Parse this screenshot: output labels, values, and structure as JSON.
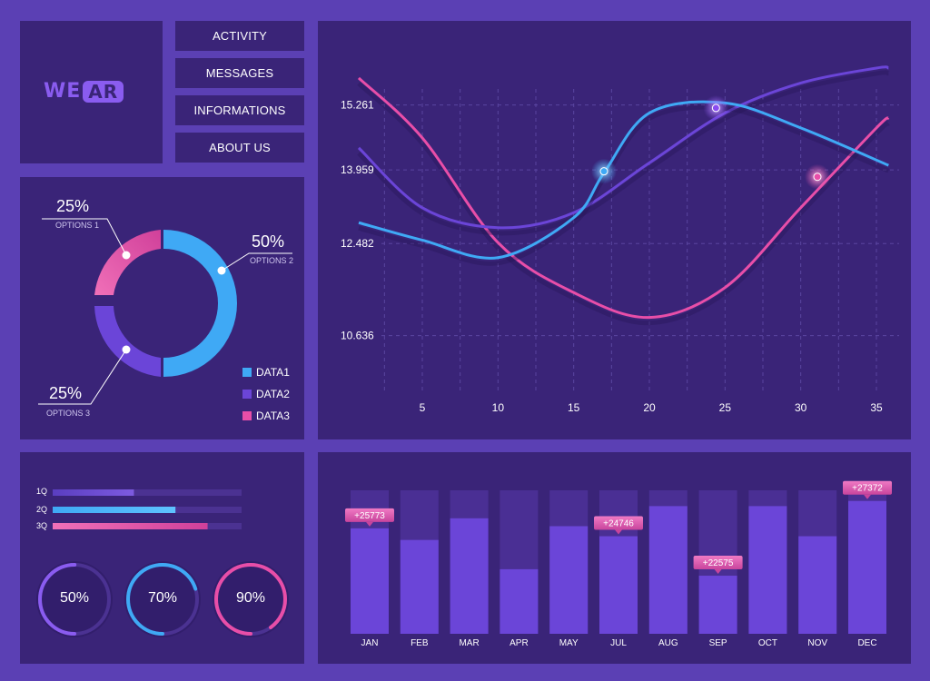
{
  "logo": {
    "prefix": "WE",
    "suffix": "AR"
  },
  "nav": {
    "items": [
      {
        "label": "ACTIVITY"
      },
      {
        "label": "MESSAGES"
      },
      {
        "label": "INFORMATIONS"
      },
      {
        "label": "ABOUT US"
      }
    ]
  },
  "colors": {
    "data1": "#3fa9f5",
    "data2": "#6b45d8",
    "data3": "#e84ea8",
    "panel": "#3a2478",
    "frame": "#5b40b4"
  },
  "donut": {
    "slices": [
      {
        "percent": "50%",
        "option": "OPTIONS 2",
        "legend": "DATA1",
        "value": 50
      },
      {
        "percent": "25%",
        "option": "OPTIONS 3",
        "legend": "DATA2",
        "value": 25
      },
      {
        "percent": "25%",
        "option": "OPTIONS 1",
        "legend": "DATA3",
        "value": 25
      }
    ]
  },
  "progress": {
    "bars": [
      {
        "label": "1Q",
        "value": 0.43
      },
      {
        "label": "2Q",
        "value": 0.65
      },
      {
        "label": "3Q",
        "value": 0.82
      }
    ],
    "rings": [
      {
        "label": "50%",
        "value": 0.5
      },
      {
        "label": "70%",
        "value": 0.7
      },
      {
        "label": "90%",
        "value": 0.9
      }
    ]
  },
  "chart_data": [
    {
      "type": "line",
      "y_ticks": [
        "15.261",
        "13.959",
        "12.482",
        "10.636"
      ],
      "x_ticks": [
        "5",
        "10",
        "15",
        "20",
        "25",
        "30",
        "35"
      ],
      "xlim": [
        0.5,
        36.5
      ],
      "ylim": [
        9.3,
        16.4
      ],
      "y_tick_values": [
        15.261,
        13.959,
        12.482,
        10.636
      ],
      "grid": true,
      "series": [
        {
          "color": "#e84ea8",
          "points": [
            [
              0.8,
              15.8
            ],
            [
              5,
              14.6
            ],
            [
              10,
              12.5
            ],
            [
              15,
              11.5
            ],
            [
              20,
              11.0
            ],
            [
              25,
              11.6
            ],
            [
              30,
              13.2
            ],
            [
              35,
              14.8
            ],
            [
              35.8,
              15.0
            ]
          ]
        },
        {
          "color": "#6b45d8",
          "points": [
            [
              0.8,
              14.4
            ],
            [
              5,
              13.2
            ],
            [
              10,
              12.8
            ],
            [
              15,
              13.1
            ],
            [
              20,
              14.1
            ],
            [
              25,
              15.1
            ],
            [
              30,
              15.7
            ],
            [
              35,
              16.0
            ],
            [
              35.8,
              16.0
            ]
          ]
        },
        {
          "color": "#3fa9f5",
          "points": [
            [
              0.8,
              12.9
            ],
            [
              5,
              12.55
            ],
            [
              10,
              12.2
            ],
            [
              15,
              13.0
            ],
            [
              17,
              13.9
            ],
            [
              20,
              15.1
            ],
            [
              25,
              15.3
            ],
            [
              30,
              14.8
            ],
            [
              35.8,
              14.05
            ]
          ]
        }
      ],
      "highlights": [
        {
          "x": 17,
          "y": 13.93,
          "color": "#3fa9f5"
        },
        {
          "x": 24.4,
          "y": 15.2,
          "color": "#8a4cf0"
        },
        {
          "x": 31.1,
          "y": 13.82,
          "color": "#e84ea8"
        }
      ]
    },
    {
      "type": "bar",
      "categories": [
        "JAN",
        "FEB",
        "MAR",
        "APR",
        "MAY",
        "JUL",
        "AUG",
        "SEP",
        "OCT",
        "NOV",
        "DEC"
      ],
      "values": [
        0.735,
        0.654,
        0.805,
        0.45,
        0.75,
        0.68,
        0.89,
        0.405,
        0.89,
        0.68,
        0.926
      ],
      "annotations": [
        {
          "index": 0,
          "label": "+25773"
        },
        {
          "index": 5,
          "label": "+24746"
        },
        {
          "index": 7,
          "label": "+22575"
        },
        {
          "index": 10,
          "label": "+27372"
        }
      ]
    }
  ]
}
